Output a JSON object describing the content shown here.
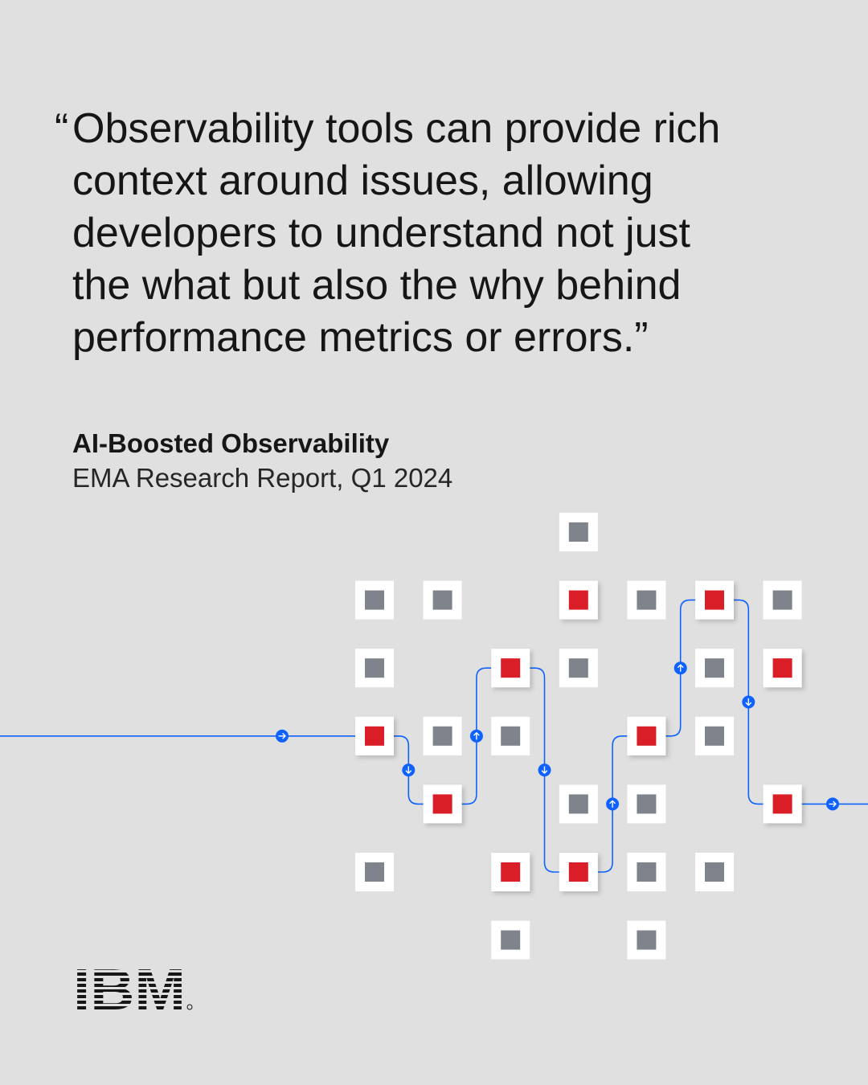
{
  "quote": {
    "open_mark": "“",
    "lines": [
      "Observability tools can provide rich",
      "context around issues, allowing",
      "developers to understand not just",
      "the what but also the why behind",
      "performance metrics or errors.”"
    ]
  },
  "source": {
    "title": "AI-Boosted Observability",
    "subtitle": "EMA Research Report, Q1 2024"
  },
  "logo": {
    "text": "IBM"
  },
  "colors": {
    "background": "#e0e0e0",
    "node_tile": "#ffffff",
    "node_inactive": "#7f848c",
    "node_active": "#da1e28",
    "path": "#0f62fe"
  },
  "diagram": {
    "nodes": [
      {
        "col": 3,
        "row": 0,
        "state": "inactive"
      },
      {
        "col": 0,
        "row": 1,
        "state": "inactive"
      },
      {
        "col": 1,
        "row": 1,
        "state": "inactive"
      },
      {
        "col": 3,
        "row": 1,
        "state": "active"
      },
      {
        "col": 4,
        "row": 1,
        "state": "inactive"
      },
      {
        "col": 5,
        "row": 1,
        "state": "active"
      },
      {
        "col": 6,
        "row": 1,
        "state": "inactive"
      },
      {
        "col": 0,
        "row": 2,
        "state": "inactive"
      },
      {
        "col": 2,
        "row": 2,
        "state": "active"
      },
      {
        "col": 3,
        "row": 2,
        "state": "inactive"
      },
      {
        "col": 5,
        "row": 2,
        "state": "inactive"
      },
      {
        "col": 6,
        "row": 2,
        "state": "active"
      },
      {
        "col": 0,
        "row": 3,
        "state": "active"
      },
      {
        "col": 1,
        "row": 3,
        "state": "inactive"
      },
      {
        "col": 2,
        "row": 3,
        "state": "inactive"
      },
      {
        "col": 4,
        "row": 3,
        "state": "active"
      },
      {
        "col": 5,
        "row": 3,
        "state": "inactive"
      },
      {
        "col": 1,
        "row": 4,
        "state": "active"
      },
      {
        "col": 3,
        "row": 4,
        "state": "inactive"
      },
      {
        "col": 4,
        "row": 4,
        "state": "inactive"
      },
      {
        "col": 6,
        "row": 4,
        "state": "active"
      },
      {
        "col": 0,
        "row": 5,
        "state": "inactive"
      },
      {
        "col": 2,
        "row": 5,
        "state": "active"
      },
      {
        "col": 3,
        "row": 5,
        "state": "active"
      },
      {
        "col": 4,
        "row": 5,
        "state": "inactive"
      },
      {
        "col": 5,
        "row": 5,
        "state": "inactive"
      },
      {
        "col": 2,
        "row": 6,
        "state": "inactive"
      },
      {
        "col": 4,
        "row": 6,
        "state": "inactive"
      }
    ],
    "path_sequence": [
      {
        "col": 0,
        "row": 3
      },
      {
        "col": 1,
        "row": 4
      },
      {
        "col": 2,
        "row": 2
      },
      {
        "col": 3,
        "row": 5
      },
      {
        "col": 4,
        "row": 3
      },
      {
        "col": 5,
        "row": 1
      },
      {
        "col": 6,
        "row": 4
      }
    ]
  }
}
